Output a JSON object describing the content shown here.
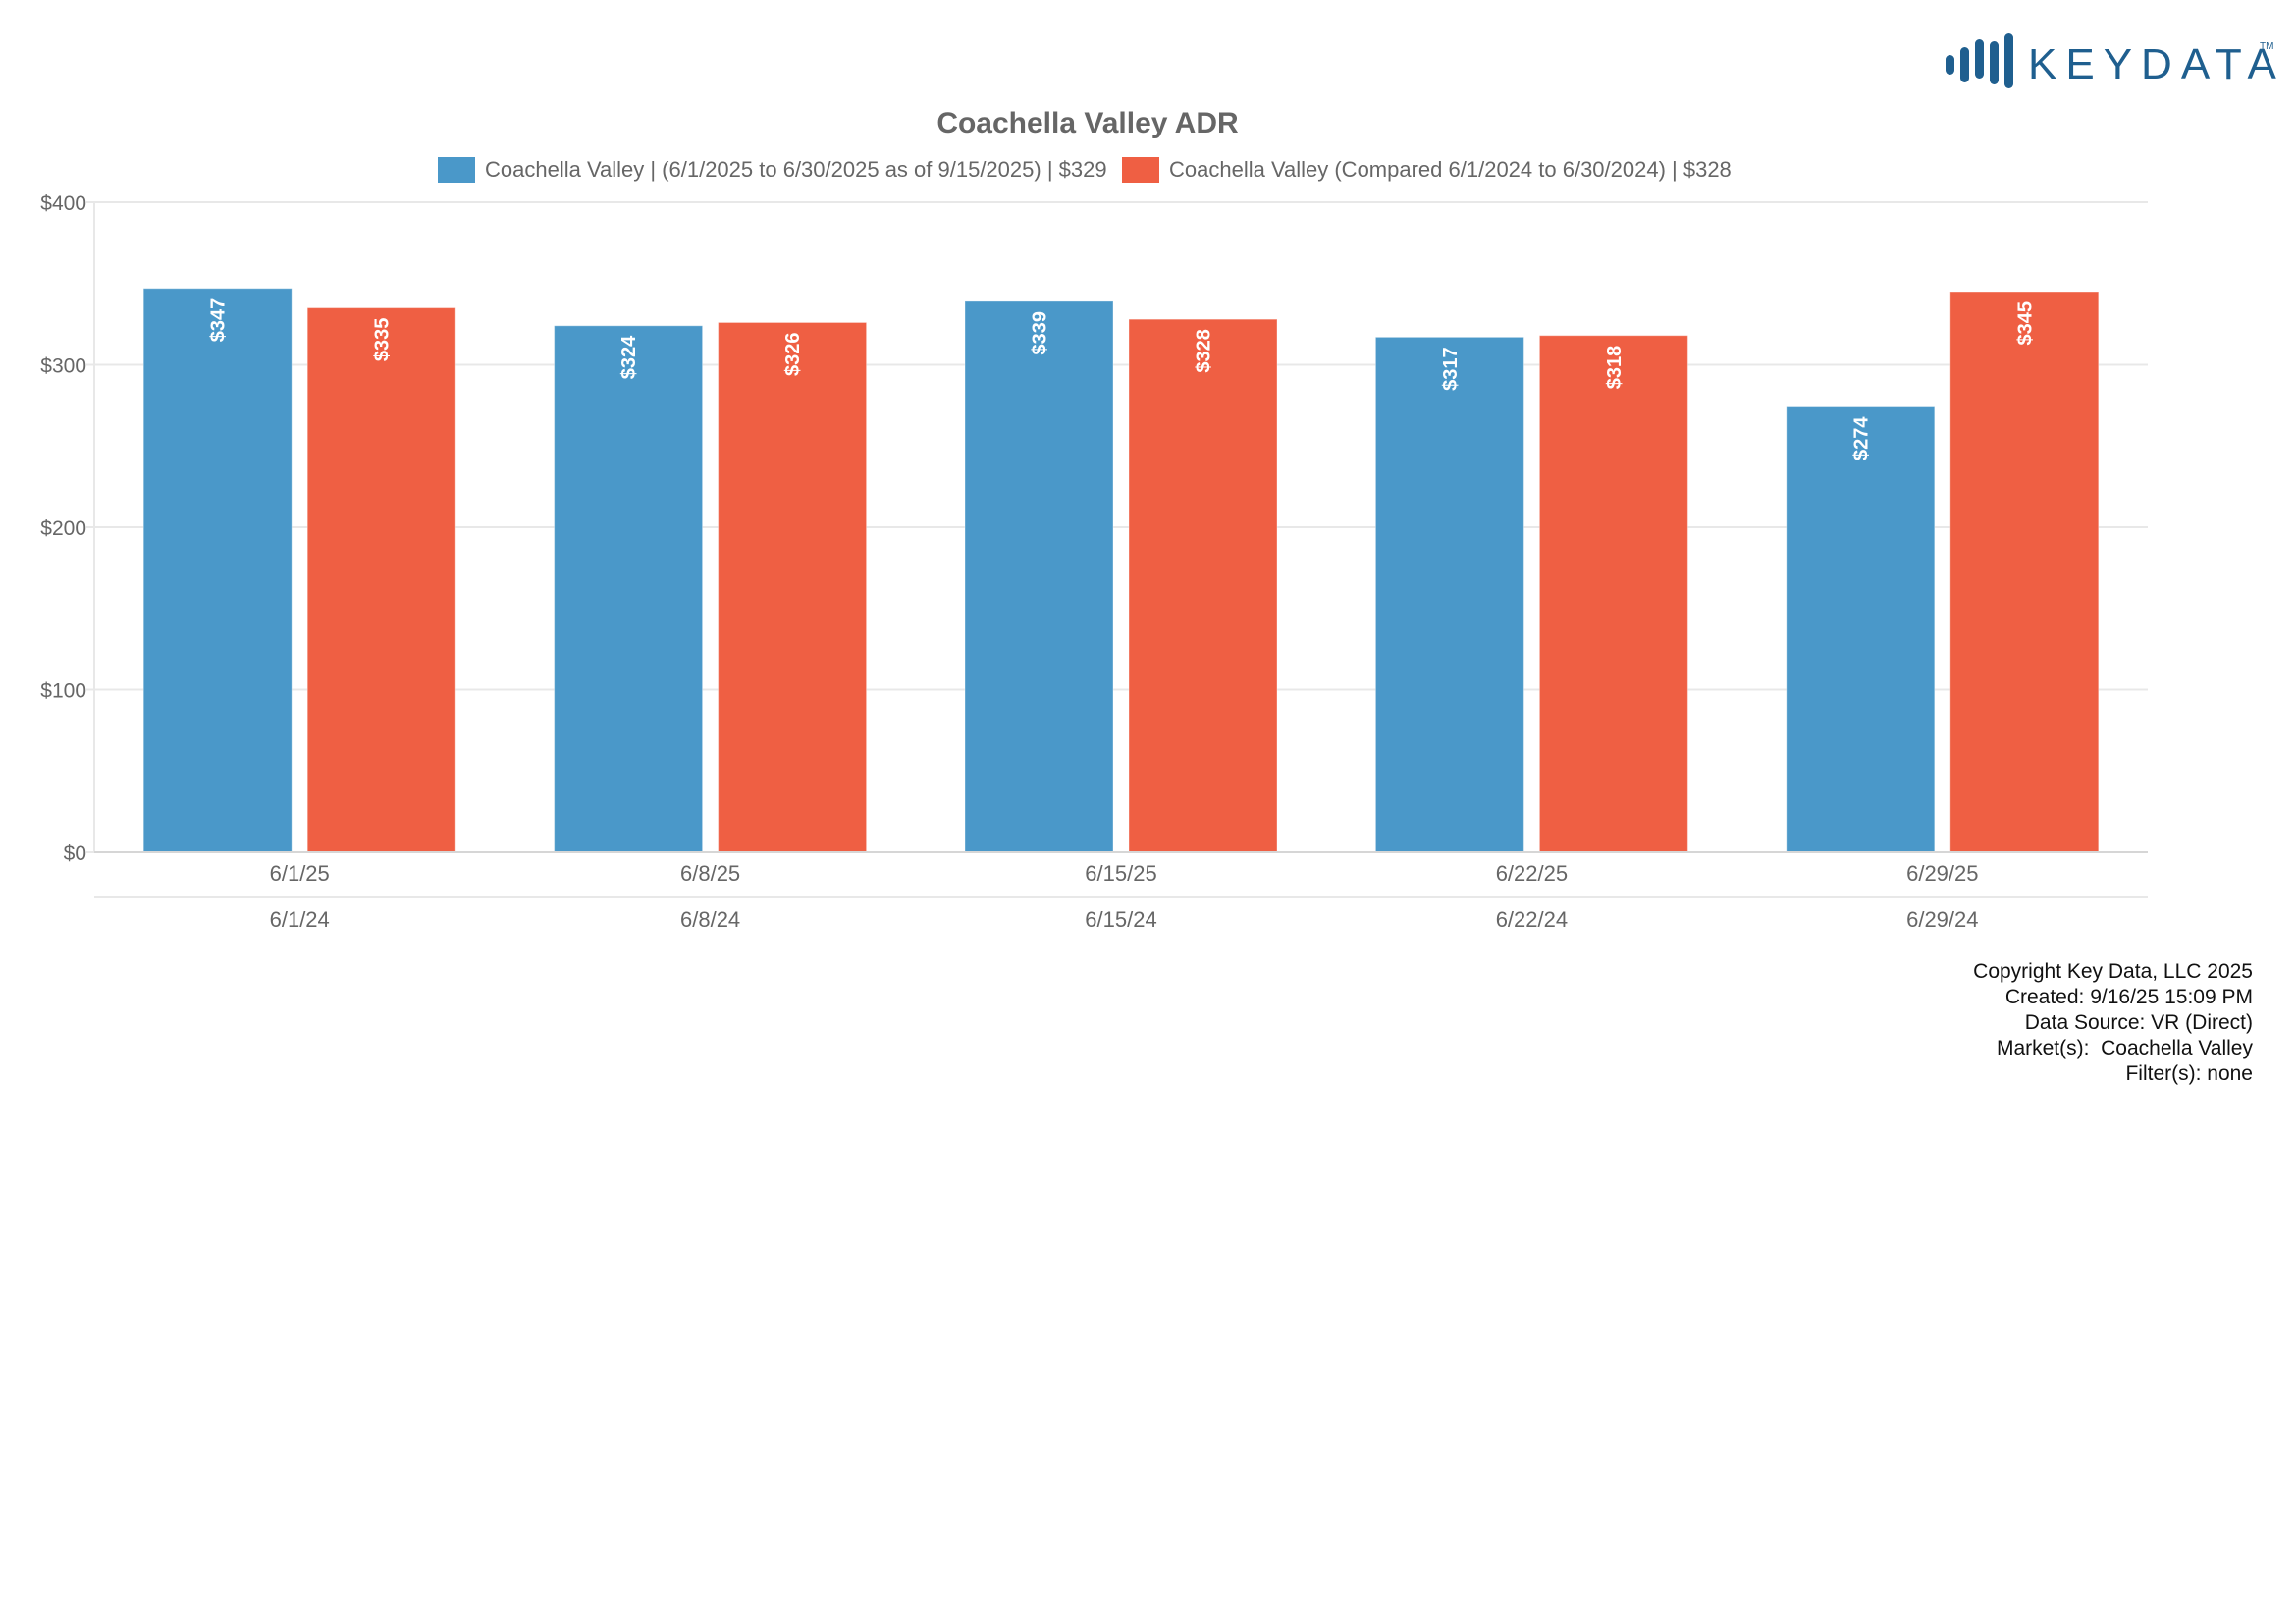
{
  "logo": {
    "text": "KEYDATA",
    "trademark": "TM",
    "color": "#1f5f8f"
  },
  "colors": {
    "current": "#4a98c9",
    "compare": "#ef5f43",
    "grid": "#e8e8e8",
    "axis": "#d6d6d6",
    "text": "#666666"
  },
  "chart_data": {
    "type": "bar",
    "title": "Coachella Valley ADR",
    "categories": [
      "6/1/25",
      "6/8/25",
      "6/15/25",
      "6/22/25",
      "6/29/25"
    ],
    "secondary_categories": [
      "6/1/24",
      "6/8/24",
      "6/15/24",
      "6/22/24",
      "6/29/24"
    ],
    "series": [
      {
        "name": "Coachella Valley | (6/1/2025 to 6/30/2025 as of 9/15/2025) | $329",
        "values": [
          347,
          324,
          339,
          317,
          274
        ],
        "labels": [
          "$347",
          "$324",
          "$339",
          "$317",
          "$274"
        ]
      },
      {
        "name": "Coachella Valley (Compared 6/1/2024 to 6/30/2024) | $328",
        "values": [
          335,
          326,
          328,
          318,
          345
        ],
        "labels": [
          "$335",
          "$326",
          "$328",
          "$318",
          "$345"
        ]
      }
    ],
    "xlabel": "",
    "ylabel": "",
    "ylim": [
      0,
      400
    ],
    "yticks": [
      0,
      100,
      200,
      300,
      400
    ],
    "ytick_labels": [
      "$0",
      "$100",
      "$200",
      "$300",
      "$400"
    ],
    "grid": true,
    "legend_position": "top-center"
  },
  "footer": {
    "lines": [
      "Copyright Key Data, LLC 2025",
      "Created: 9/16/25 15:09 PM",
      "Data Source: VR (Direct)",
      "Market(s):  Coachella Valley",
      "Filter(s): none"
    ]
  }
}
